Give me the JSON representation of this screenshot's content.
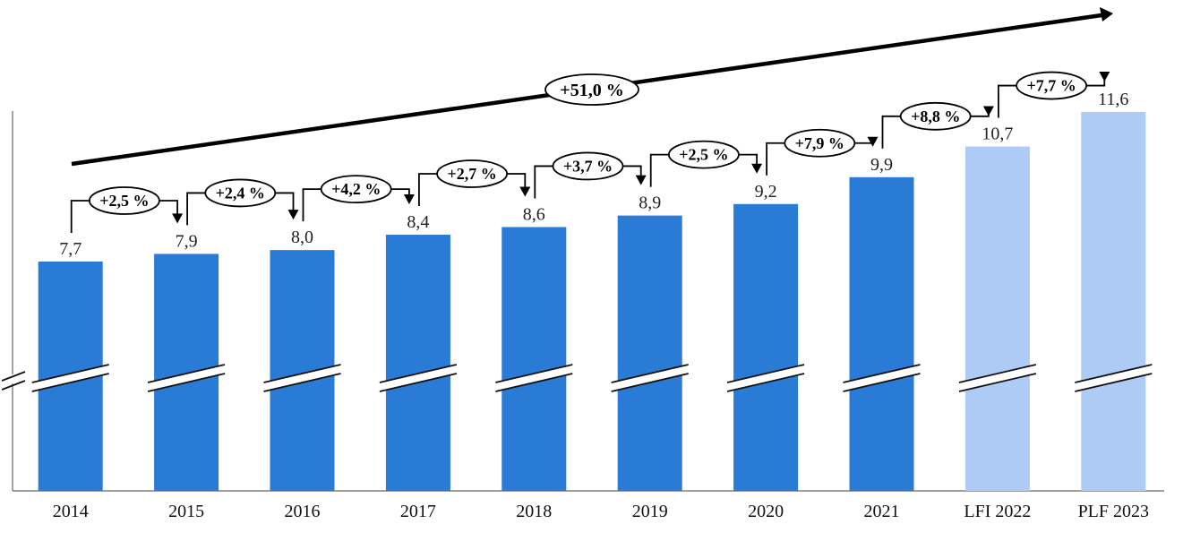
{
  "chart_data": {
    "type": "bar",
    "categories": [
      "2014",
      "2015",
      "2016",
      "2017",
      "2018",
      "2019",
      "2020",
      "2021",
      "LFI 2022",
      "PLF 2023"
    ],
    "values": [
      7.7,
      7.9,
      8.0,
      8.4,
      8.6,
      8.9,
      9.2,
      9.9,
      10.7,
      11.6
    ],
    "value_labels": [
      "7,7",
      "7,9",
      "8,0",
      "8,4",
      "8,6",
      "8,9",
      "9,2",
      "9,9",
      "10,7",
      "11,6"
    ],
    "growth_labels": [
      "+2,5 %",
      "+2,4 %",
      "+4,2 %",
      "+2,7 %",
      "+3,7 %",
      "+2,5 %",
      "+7,9 %",
      "+8,8 %",
      "+7,7 %"
    ],
    "total_growth_label": "+51,0 %",
    "axis_break": true,
    "grid": false,
    "colors": {
      "actual": "#2A7BD6",
      "forecast": "#AECBF5",
      "annotation": "#000000"
    },
    "forecast_categories": [
      "LFI 2022",
      "PLF 2023"
    ]
  }
}
